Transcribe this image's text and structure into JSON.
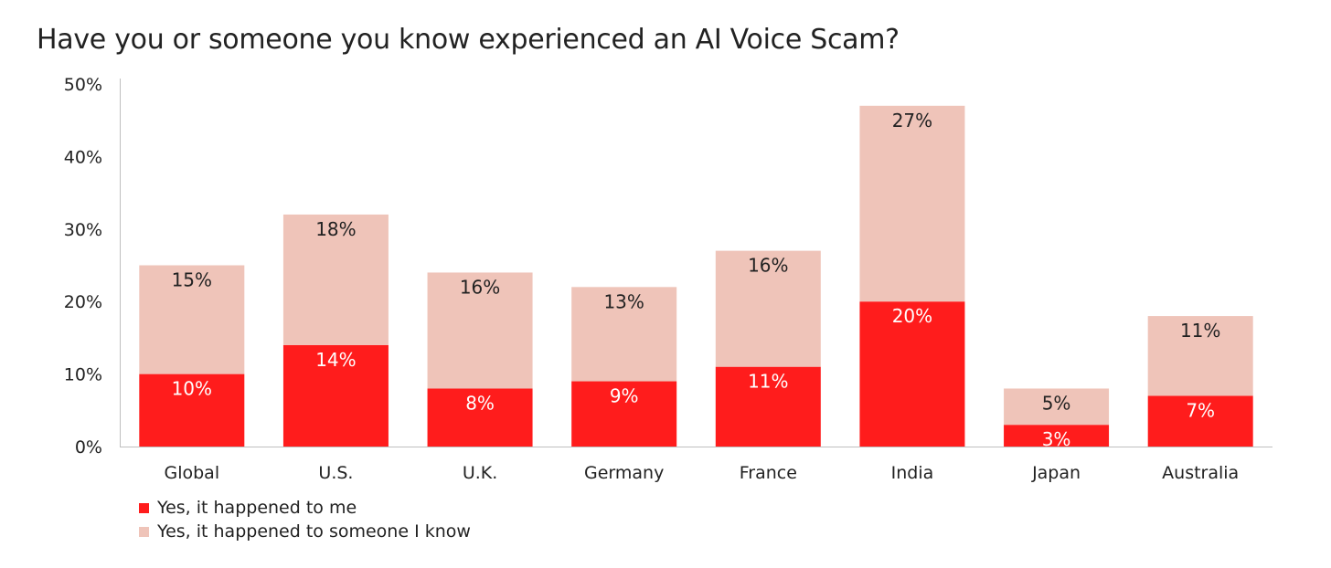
{
  "chart_data": {
    "type": "bar",
    "stacked": true,
    "title": "Have you or someone you know experienced an AI Voice Scam?",
    "xlabel": "",
    "ylabel": "",
    "ylim": [
      0,
      50
    ],
    "yticks": [
      "0%",
      "10%",
      "20%",
      "30%",
      "40%",
      "50%"
    ],
    "grid": false,
    "legend_position": "bottom-left",
    "categories": [
      "Global",
      "U.S.",
      "U.K.",
      "Germany",
      "France",
      "India",
      "Japan",
      "Australia"
    ],
    "series": [
      {
        "name": "Yes, it happened to me",
        "color": "#ff1c1c",
        "label_color": "#ffffff",
        "values": [
          10,
          14,
          8,
          9,
          11,
          20,
          3,
          7
        ],
        "labels": [
          "10%",
          "14%",
          "8%",
          "9%",
          "11%",
          "20%",
          "3%",
          "7%"
        ]
      },
      {
        "name": "Yes, it happened to someone I know",
        "color": "#efc4b9",
        "label_color": "#222222",
        "values": [
          15,
          18,
          16,
          13,
          16,
          27,
          5,
          11
        ],
        "labels": [
          "15%",
          "18%",
          "16%",
          "13%",
          "16%",
          "27%",
          "5%",
          "11%"
        ]
      }
    ]
  }
}
